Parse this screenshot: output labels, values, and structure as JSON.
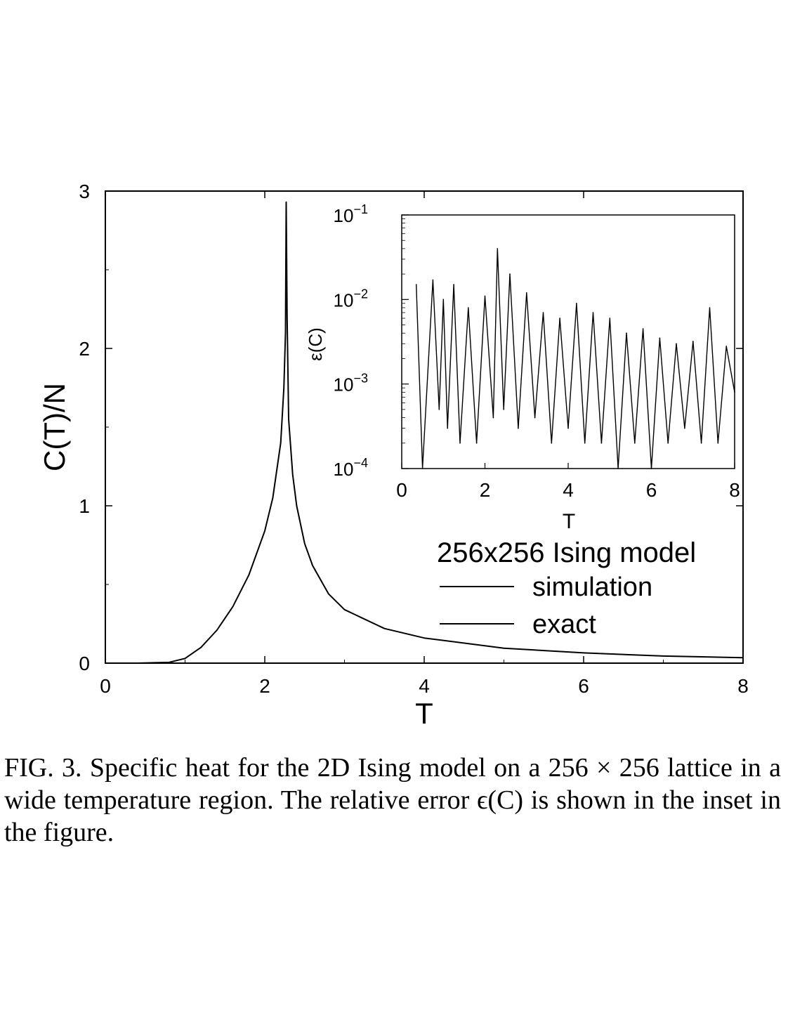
{
  "chart_data": [
    {
      "type": "line",
      "title": "",
      "xlabel": "T",
      "ylabel": "C(T)/N",
      "xlim": [
        0,
        8
      ],
      "ylim": [
        0,
        3
      ],
      "xticks": [
        "0",
        "2",
        "4",
        "6",
        "8"
      ],
      "yticks": [
        "0",
        "1",
        "2",
        "3"
      ],
      "grid": false,
      "legend_title": "256x256 Ising model",
      "legend_position": "right, lower",
      "series": [
        {
          "name": "simulation",
          "color": "#000000",
          "x": [
            0.4,
            0.8,
            1.0,
            1.2,
            1.4,
            1.6,
            1.8,
            2.0,
            2.1,
            2.2,
            2.24,
            2.26,
            2.269,
            2.28,
            2.3,
            2.35,
            2.4,
            2.5,
            2.6,
            2.8,
            3.0,
            3.5,
            4.0,
            5.0,
            6.0,
            7.0,
            8.0
          ],
          "y": [
            0.0,
            0.005,
            0.03,
            0.1,
            0.21,
            0.36,
            0.56,
            0.84,
            1.05,
            1.4,
            1.75,
            2.1,
            2.93,
            2.2,
            1.55,
            1.2,
            1.0,
            0.76,
            0.62,
            0.44,
            0.34,
            0.22,
            0.16,
            0.095,
            0.065,
            0.045,
            0.035
          ]
        },
        {
          "name": "exact",
          "color": "#000000",
          "x": [
            0.4,
            0.8,
            1.0,
            1.2,
            1.4,
            1.6,
            1.8,
            2.0,
            2.1,
            2.2,
            2.24,
            2.26,
            2.269,
            2.28,
            2.3,
            2.35,
            2.4,
            2.5,
            2.6,
            2.8,
            3.0,
            3.5,
            4.0,
            5.0,
            6.0,
            7.0,
            8.0
          ],
          "y": [
            0.0,
            0.005,
            0.03,
            0.1,
            0.21,
            0.36,
            0.56,
            0.84,
            1.05,
            1.4,
            1.75,
            2.1,
            2.93,
            2.2,
            1.55,
            1.2,
            1.0,
            0.76,
            0.62,
            0.44,
            0.34,
            0.22,
            0.16,
            0.095,
            0.065,
            0.045,
            0.035
          ]
        }
      ]
    },
    {
      "type": "line",
      "title": "",
      "xlabel": "T",
      "ylabel": "ε(C)",
      "xlim": [
        0,
        8
      ],
      "ylim": [
        0.0001,
        0.1
      ],
      "yscale": "log",
      "xticks": [
        "0",
        "2",
        "4",
        "6",
        "8"
      ],
      "yticks": [
        {
          "base": "10",
          "exp": "−4"
        },
        {
          "base": "10",
          "exp": "−3"
        },
        {
          "base": "10",
          "exp": "−2"
        },
        {
          "base": "10",
          "exp": "−1"
        }
      ],
      "grid": false,
      "series": [
        {
          "color": "#000000",
          "x": [
            0.35,
            0.5,
            0.75,
            0.9,
            1.0,
            1.1,
            1.25,
            1.4,
            1.6,
            1.8,
            2.0,
            2.2,
            2.3,
            2.45,
            2.6,
            2.8,
            3.0,
            3.2,
            3.4,
            3.6,
            3.8,
            4.0,
            4.2,
            4.4,
            4.6,
            4.8,
            5.0,
            5.2,
            5.4,
            5.6,
            5.8,
            6.0,
            6.2,
            6.4,
            6.6,
            6.8,
            7.0,
            7.2,
            7.4,
            7.6,
            7.8,
            8.0
          ],
          "y": [
            0.015,
            0.0001,
            0.017,
            0.0005,
            0.01,
            0.0003,
            0.015,
            0.0002,
            0.008,
            0.0002,
            0.011,
            0.0004,
            0.04,
            0.0005,
            0.02,
            0.0003,
            0.012,
            0.0004,
            0.007,
            0.0002,
            0.006,
            0.0003,
            0.009,
            0.0002,
            0.007,
            0.0002,
            0.006,
            0.0001,
            0.004,
            0.0002,
            0.0045,
            0.0001,
            0.0035,
            0.0002,
            0.003,
            0.0003,
            0.0032,
            0.0002,
            0.008,
            0.0002,
            0.0028,
            0.0008
          ]
        }
      ]
    }
  ],
  "caption": "FIG. 3.   Specific heat for the 2D Ising model on a 256 × 256 lattice in a wide temperature region. The relative error ϵ(C) is shown in the inset in the figure."
}
